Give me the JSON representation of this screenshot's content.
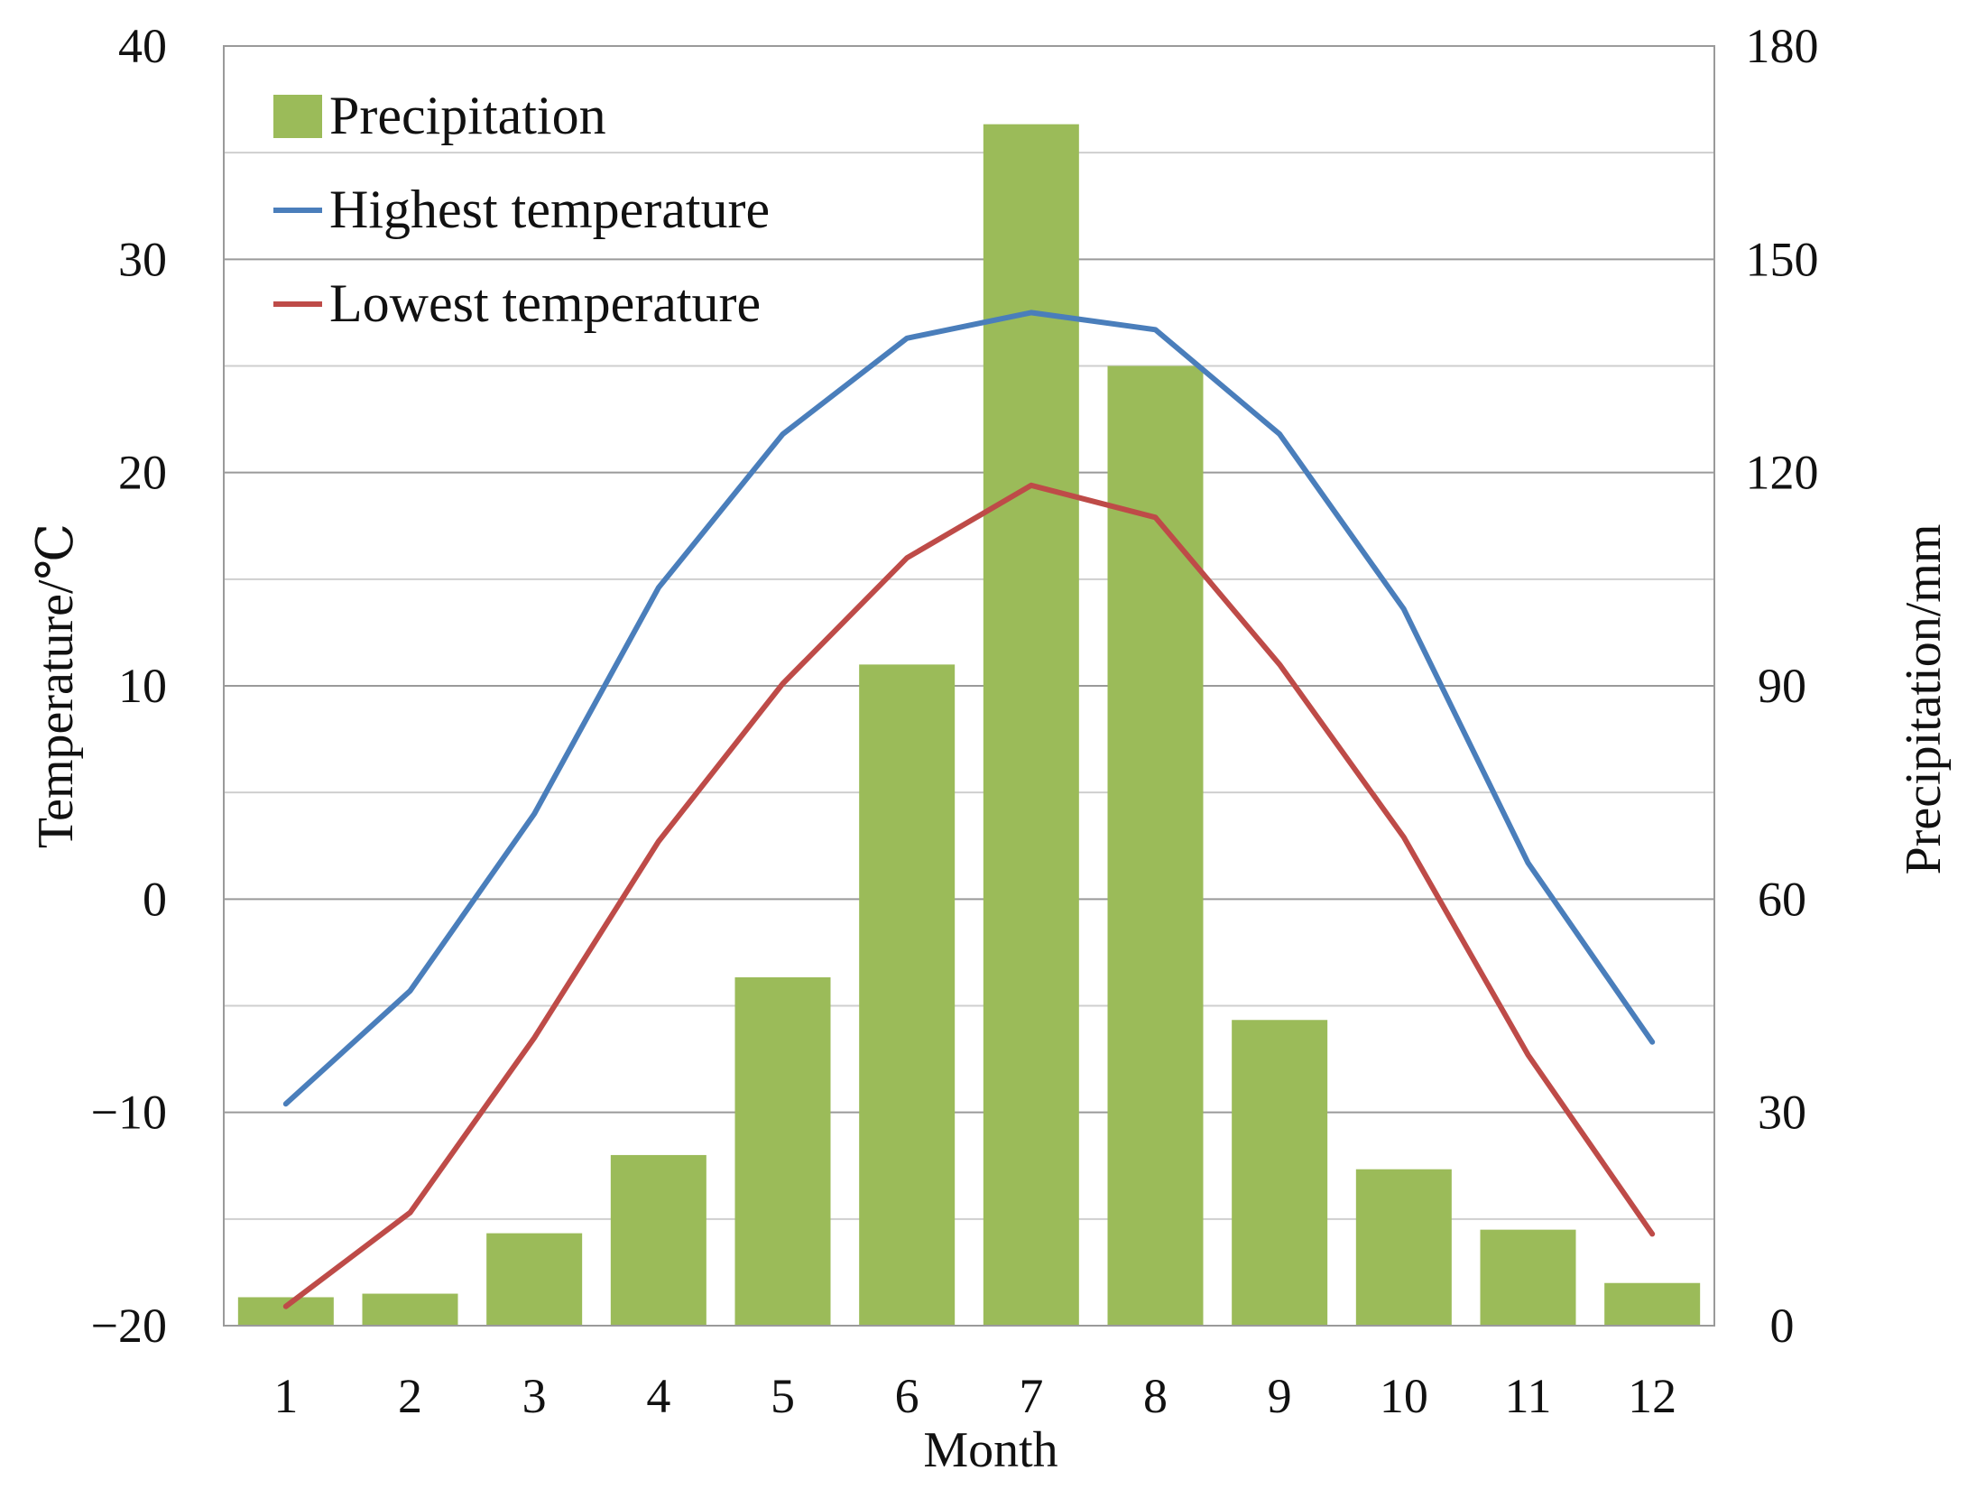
{
  "chart_data": {
    "type": "bar",
    "title": "",
    "xlabel": "Month",
    "ylabel_left": "Temperature/℃",
    "ylabel_right": "Precipitation/mm",
    "categories": [
      "1",
      "2",
      "3",
      "4",
      "5",
      "6",
      "7",
      "8",
      "9",
      "10",
      "11",
      "12"
    ],
    "ylim_left": [
      -20,
      40
    ],
    "ylim_right": [
      0,
      180
    ],
    "yticks_left": [
      "−20",
      "−10",
      "0",
      "10",
      "20",
      "30",
      "40"
    ],
    "yticks_right": [
      "0",
      "30",
      "60",
      "90",
      "120",
      "150",
      "180"
    ],
    "grid": true,
    "legend_position": "top-left",
    "series": [
      {
        "name": "Precipitation",
        "kind": "bar",
        "axis": "right",
        "color": "#9bbb59",
        "values": [
          4,
          4.5,
          13,
          24,
          49,
          93,
          169,
          135,
          43,
          22,
          13.5,
          6
        ]
      },
      {
        "name": "Highest temperature",
        "kind": "line",
        "axis": "left",
        "color": "#4a7ebb",
        "values": [
          -9.6,
          -4.3,
          4,
          14.6,
          21.8,
          26.3,
          27.5,
          26.7,
          21.8,
          13.6,
          1.7,
          -6.7
        ]
      },
      {
        "name": "Lowest temperature",
        "kind": "line",
        "axis": "left",
        "color": "#be4b48",
        "values": [
          -19.1,
          -14.7,
          -6.5,
          2.7,
          10.1,
          16,
          19.4,
          17.9,
          11,
          2.9,
          -7.3,
          -15.7
        ]
      }
    ]
  }
}
